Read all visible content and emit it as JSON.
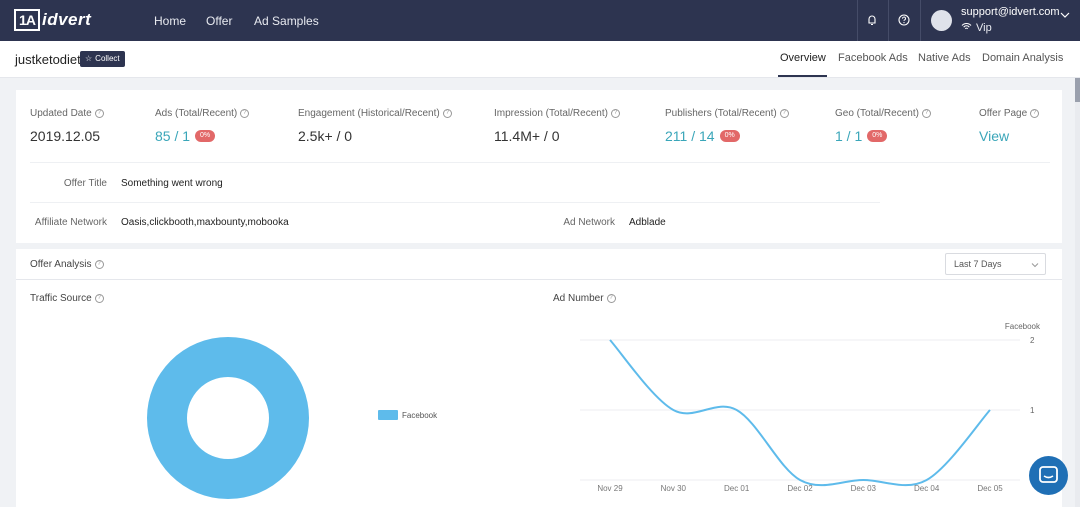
{
  "nav": {
    "logo_box": "1A",
    "logo_text": "idvert",
    "links": [
      "Home",
      "Offer",
      "Ad Samples"
    ],
    "user_email": "support@idvert.com",
    "user_plan": "Vip",
    "icons": [
      "bell-icon",
      "help-icon",
      "wifi-icon",
      "chevron-down-icon"
    ]
  },
  "subheader": {
    "site": "justketodiet",
    "collect": "Collect",
    "tabs": [
      "Overview",
      "Facebook Ads",
      "Native Ads",
      "Domain Analysis"
    ],
    "active_tab": "Overview"
  },
  "stats": [
    {
      "label": "Updated Date",
      "value": "2019.12.05",
      "link": false,
      "badge": ""
    },
    {
      "label": "Ads (Total/Recent)",
      "value": "85 / 1",
      "link": true,
      "badge": "0%"
    },
    {
      "label": "Engagement (Historical/Recent)",
      "value": "2.5k+ / 0",
      "link": false,
      "badge": ""
    },
    {
      "label": "Impression (Total/Recent)",
      "value": "11.4M+ / 0",
      "link": false,
      "badge": ""
    },
    {
      "label": "Publishers (Total/Recent)",
      "value": "211 / 14",
      "link": true,
      "badge": "0%"
    },
    {
      "label": "Geo (Total/Recent)",
      "value": "1 / 1",
      "link": true,
      "badge": "0%"
    },
    {
      "label": "Offer Page",
      "value": "View",
      "link": true,
      "badge": ""
    }
  ],
  "info": {
    "offer_title_label": "Offer Title",
    "offer_title_value": "Something went wrong",
    "affiliate_label": "Affiliate Network",
    "affiliate_value": "Oasis,clickbooth,maxbounty,mobooka",
    "ad_network_label": "Ad Network",
    "ad_network_value": "Adblade"
  },
  "analysis": {
    "title": "Offer Analysis",
    "range": "Last 7 Days",
    "traffic_title": "Traffic Source",
    "ad_number_title": "Ad Number"
  },
  "colors": {
    "nav_bg": "#2d3450",
    "link": "#3aa6b9",
    "badge": "#e26868",
    "chart": "#5ebbeb"
  },
  "chart_data": [
    {
      "type": "pie",
      "title": "Traffic Source",
      "categories": [
        "Facebook"
      ],
      "values": [
        100
      ],
      "legend": "right"
    },
    {
      "type": "line",
      "title": "Ad Number",
      "x": [
        "Nov 29",
        "Nov 30",
        "Dec 01",
        "Dec 02",
        "Dec 03",
        "Dec 04",
        "Dec 05"
      ],
      "series": [
        {
          "name": "Facebook",
          "values": [
            2,
            1,
            1,
            0,
            0,
            0,
            1
          ]
        }
      ],
      "yticks": [
        "2",
        "1"
      ],
      "ylim": [
        0,
        2
      ],
      "grid": true
    }
  ]
}
